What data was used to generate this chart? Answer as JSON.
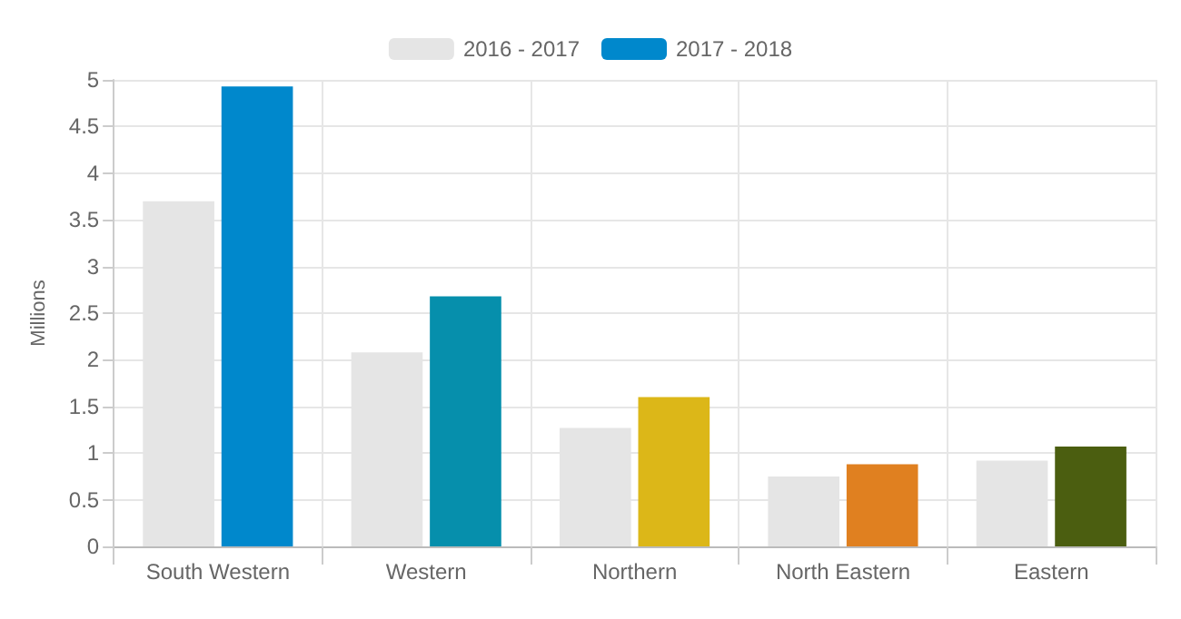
{
  "chart_data": {
    "type": "bar",
    "ylabel": "Millions",
    "categories": [
      "South Western",
      "Western",
      "Northern",
      "North Eastern",
      "Eastern"
    ],
    "series": [
      {
        "name": "2016 - 2017",
        "color": "#e5e5e5",
        "values": [
          3.7,
          2.08,
          1.27,
          0.75,
          0.92
        ]
      },
      {
        "name": "2017 - 2018",
        "colors": [
          "#0088cc",
          "#068fac",
          "#dcb718",
          "#e08020",
          "#4b5e10"
        ],
        "values": [
          4.93,
          2.68,
          1.6,
          0.88,
          1.07
        ]
      }
    ],
    "ylim": [
      0,
      5
    ],
    "yticks": [
      0,
      0.5,
      1,
      1.5,
      2,
      2.5,
      3,
      3.5,
      4,
      4.5,
      5
    ],
    "grid": true,
    "legend": "top"
  }
}
